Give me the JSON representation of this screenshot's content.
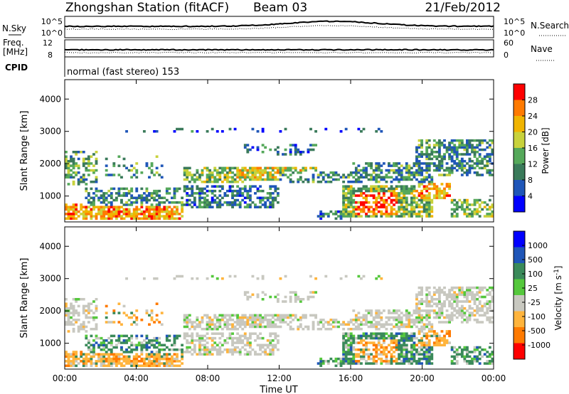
{
  "header": {
    "title": "Zhongshan Station (fitACF)",
    "beam": "Beam 03",
    "date": "21/Feb/2012"
  },
  "sky_panel": {
    "left_label": "N.Sky",
    "right_label": "N.Search",
    "left_ticks": [
      "10^5",
      "10^0"
    ],
    "right_ticks": [
      "10^5",
      "10^0"
    ]
  },
  "freq_panel": {
    "left_label_1": "Freq.",
    "left_label_2": "[MHz]",
    "right_label": "Nave",
    "left_ticks": [
      "12",
      "8"
    ],
    "right_ticks": [
      "60",
      "0"
    ]
  },
  "cpid": {
    "label": "CPID",
    "mode": "normal (fast stereo) 153"
  },
  "colors": {
    "power_scale": [
      "#0000ff",
      "#1f56b8",
      "#3a7a5a",
      "#55a85a",
      "#c8d23c",
      "#f0b400",
      "#ff7a00",
      "#ff0000"
    ],
    "velocity_scale": [
      "#ff0000",
      "#ff7a00",
      "#ffb43c",
      "#c8c8c0",
      "#55c83c",
      "#3a8a5a",
      "#1f56b8",
      "#0000ff"
    ]
  },
  "chart_data": [
    {
      "type": "heatmap",
      "name": "power",
      "ylabel": "Slant Range [km]",
      "yticks": [
        "1000",
        "2000",
        "3000",
        "4000"
      ],
      "ylim": [
        200,
        4600
      ],
      "colorbar_label": "Power [dB]",
      "colorbar_ticks": [
        "4",
        "8",
        "12",
        "16",
        "20",
        "24",
        "28"
      ],
      "value_range": [
        0,
        30
      ]
    },
    {
      "type": "heatmap",
      "name": "velocity",
      "ylabel": "Slant Range [km]",
      "yticks": [
        "1000",
        "2000",
        "3000",
        "4000"
      ],
      "ylim": [
        200,
        4600
      ],
      "colorbar_label": "Velocity [m s^-1]",
      "colorbar_ticks": [
        "1000",
        "500",
        "100",
        "25",
        "-25",
        "-100",
        "-500",
        "-1000"
      ],
      "xlabel": "Time UT",
      "xticks": [
        "00:00",
        "04:00",
        "08:00",
        "12:00",
        "16:00",
        "20:00",
        "00:00"
      ]
    }
  ]
}
